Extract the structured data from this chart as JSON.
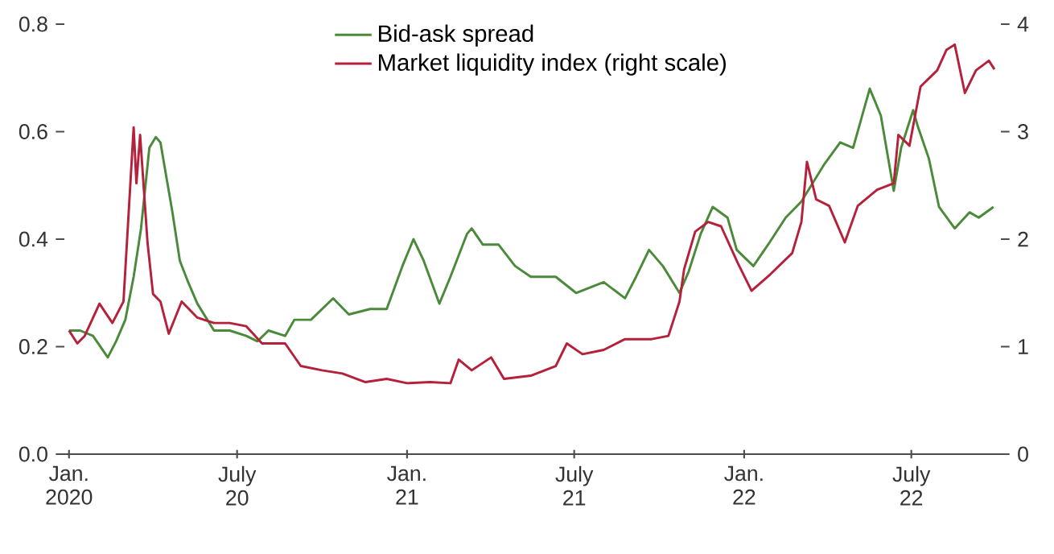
{
  "chart_data": {
    "type": "line",
    "legend": "top",
    "marker": "none",
    "line_style": "solid",
    "grid": false,
    "xlim": [
      "2019-12-27",
      "2022-10-06"
    ],
    "xticks": [
      {
        "value": "2020-01-01",
        "label": "Jan. 2020"
      },
      {
        "value": "2020-07-01",
        "label": "July 20"
      },
      {
        "value": "2021-01-01",
        "label": "Jan. 21"
      },
      {
        "value": "2021-07-01",
        "label": "July 21"
      },
      {
        "value": "2022-01-01",
        "label": "Jan. 22"
      },
      {
        "value": "2022-07-01",
        "label": "July 22"
      }
    ],
    "ylim": [
      0,
      0.8
    ],
    "yticks": [
      {
        "value": 0,
        "label": "0.0"
      },
      {
        "value": 0.2,
        "label": "0.2"
      },
      {
        "value": 0.4,
        "label": "0.4"
      },
      {
        "value": 0.6,
        "label": "0.6"
      },
      {
        "value": 0.8,
        "label": "0.8"
      }
    ],
    "y2lim": [
      0,
      4
    ],
    "y2ticks": [
      0,
      1,
      2,
      3,
      4
    ],
    "series": [
      {
        "name": "Bid-ask spread",
        "color": "#4a8a3a",
        "x": [
          "2020-01-01",
          "2020-01-13",
          "2020-01-27",
          "2020-02-12",
          "2020-02-21",
          "2020-03-02",
          "2020-03-11",
          "2020-03-19",
          "2020-03-28",
          "2020-04-04",
          "2020-04-09",
          "2020-04-15",
          "2020-04-22",
          "2020-04-30",
          "2020-05-09",
          "2020-05-19",
          "2020-06-06",
          "2020-06-23",
          "2020-07-11",
          "2020-07-23",
          "2020-08-04",
          "2020-08-22",
          "2020-09-01",
          "2020-09-19",
          "2020-10-13",
          "2020-10-30",
          "2020-11-22",
          "2020-12-10",
          "2020-12-27",
          "2021-01-08",
          "2021-01-19",
          "2021-02-05",
          "2021-02-17",
          "2021-03-07",
          "2021-03-12",
          "2021-03-24",
          "2021-04-10",
          "2021-04-28",
          "2021-05-15",
          "2021-06-11",
          "2021-07-03",
          "2021-08-02",
          "2021-08-25",
          "2021-09-06",
          "2021-09-20",
          "2021-10-05",
          "2021-10-23",
          "2021-11-02",
          "2021-11-15",
          "2021-11-28",
          "2021-12-14",
          "2021-12-24",
          "2022-01-11",
          "2022-01-27",
          "2022-02-15",
          "2022-03-04",
          "2022-03-29",
          "2022-04-15",
          "2022-04-29",
          "2022-05-17",
          "2022-05-29",
          "2022-06-12",
          "2022-06-20",
          "2022-07-03",
          "2022-07-08",
          "2022-07-20",
          "2022-07-31",
          "2022-08-17",
          "2022-09-02",
          "2022-09-12",
          "2022-09-28"
        ],
        "values": [
          0.23,
          0.23,
          0.22,
          0.18,
          0.21,
          0.25,
          0.33,
          0.42,
          0.57,
          0.59,
          0.58,
          0.52,
          0.45,
          0.36,
          0.32,
          0.28,
          0.23,
          0.23,
          0.22,
          0.21,
          0.23,
          0.22,
          0.25,
          0.25,
          0.29,
          0.26,
          0.27,
          0.27,
          0.35,
          0.4,
          0.36,
          0.28,
          0.33,
          0.41,
          0.42,
          0.39,
          0.39,
          0.35,
          0.33,
          0.33,
          0.3,
          0.32,
          0.29,
          0.33,
          0.38,
          0.35,
          0.3,
          0.34,
          0.41,
          0.46,
          0.44,
          0.38,
          0.35,
          0.39,
          0.44,
          0.47,
          0.54,
          0.58,
          0.57,
          0.68,
          0.63,
          0.49,
          0.57,
          0.64,
          0.61,
          0.55,
          0.46,
          0.42,
          0.45,
          0.44,
          0.46
        ]
      },
      {
        "name": "Market liquidity index (right scale)",
        "color": "#b5203a",
        "axis": "y2",
        "x": [
          "2020-01-01",
          "2020-01-10",
          "2020-01-18",
          "2020-02-03",
          "2020-02-17",
          "2020-02-29",
          "2020-03-11",
          "2020-03-14",
          "2020-03-18",
          "2020-03-26",
          "2020-04-01",
          "2020-04-09",
          "2020-04-18",
          "2020-05-02",
          "2020-05-19",
          "2020-06-06",
          "2020-06-23",
          "2020-07-11",
          "2020-07-28",
          "2020-08-22",
          "2020-09-08",
          "2020-10-01",
          "2020-10-23",
          "2020-11-17",
          "2020-12-10",
          "2021-01-01",
          "2021-01-26",
          "2021-02-17",
          "2021-02-26",
          "2021-03-12",
          "2021-04-02",
          "2021-04-16",
          "2021-05-15",
          "2021-06-11",
          "2021-06-23",
          "2021-07-10",
          "2021-08-02",
          "2021-08-25",
          "2021-09-23",
          "2021-10-11",
          "2021-10-23",
          "2021-10-28",
          "2021-11-09",
          "2021-11-23",
          "2021-12-07",
          "2021-12-25",
          "2022-01-09",
          "2022-01-29",
          "2022-02-22",
          "2022-03-04",
          "2022-03-10",
          "2022-03-20",
          "2022-04-03",
          "2022-04-20",
          "2022-05-04",
          "2022-05-25",
          "2022-06-12",
          "2022-06-17",
          "2022-06-29",
          "2022-07-11",
          "2022-07-29",
          "2022-08-08",
          "2022-08-17",
          "2022-08-28",
          "2022-09-09",
          "2022-09-23",
          "2022-09-29"
        ],
        "values": [
          1.15,
          1.03,
          1.1,
          1.4,
          1.22,
          1.42,
          3.04,
          2.52,
          2.97,
          1.97,
          1.49,
          1.42,
          1.12,
          1.42,
          1.27,
          1.22,
          1.22,
          1.19,
          1.03,
          1.03,
          0.82,
          0.78,
          0.75,
          0.67,
          0.7,
          0.66,
          0.67,
          0.66,
          0.88,
          0.78,
          0.9,
          0.7,
          0.73,
          0.82,
          1.03,
          0.93,
          0.97,
          1.07,
          1.07,
          1.1,
          1.42,
          1.72,
          2.07,
          2.16,
          2.12,
          1.78,
          1.52,
          1.67,
          1.87,
          2.16,
          2.72,
          2.37,
          2.31,
          1.97,
          2.31,
          2.46,
          2.52,
          2.97,
          2.87,
          3.42,
          3.57,
          3.76,
          3.81,
          3.36,
          3.57,
          3.66,
          3.58
        ]
      }
    ]
  }
}
